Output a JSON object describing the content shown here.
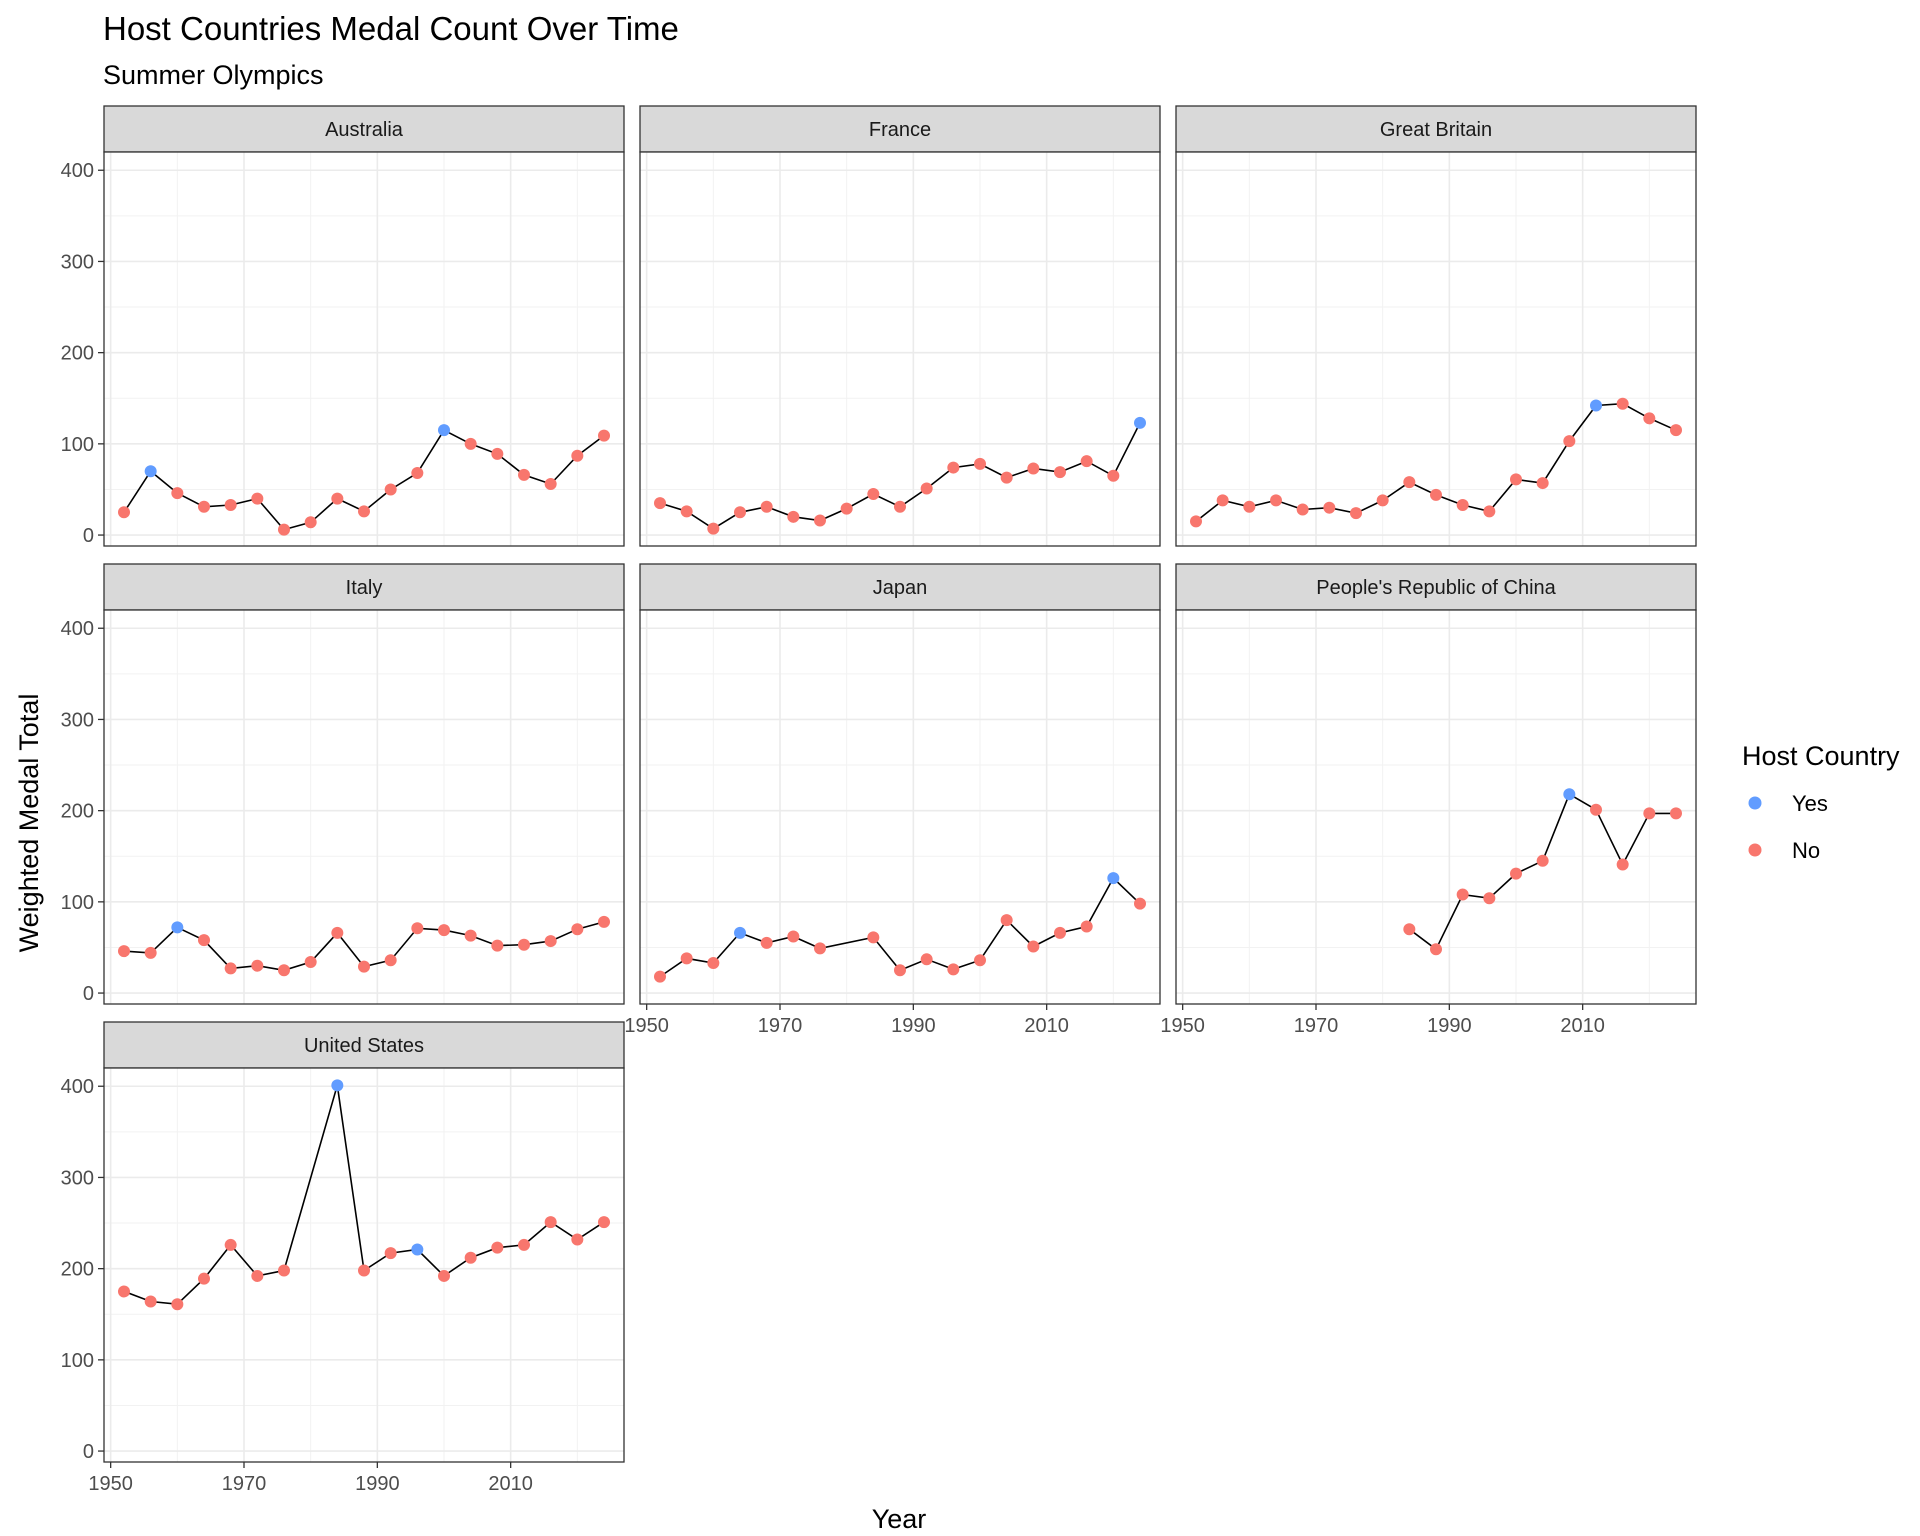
{
  "chart_data": {
    "type": "line",
    "title": "Host Countries Medal Count Over Time",
    "subtitle": "Summer Olympics",
    "xlabel": "Year",
    "ylabel": "Weighted Medal Total",
    "xlim": [
      1949,
      2027
    ],
    "ylim": [
      -12,
      420
    ],
    "x_ticks": [
      1950,
      1970,
      1990,
      2010
    ],
    "y_ticks": [
      0,
      100,
      200,
      300,
      400
    ],
    "grid": true,
    "legend": {
      "title": "Host Country",
      "position": "right",
      "entries": [
        {
          "label": "Yes",
          "color": "#619CFF"
        },
        {
          "label": "No",
          "color": "#F8766D"
        }
      ]
    },
    "line_color": "#000000",
    "facets": [
      {
        "name": "Australia",
        "x": [
          1952,
          1956,
          1960,
          1964,
          1968,
          1972,
          1976,
          1980,
          1984,
          1988,
          1992,
          1996,
          2000,
          2004,
          2008,
          2012,
          2016,
          2020,
          2024
        ],
        "y": [
          25,
          70,
          46,
          31,
          33,
          40,
          6,
          14,
          40,
          26,
          50,
          68,
          115,
          100,
          89,
          66,
          56,
          87,
          109
        ],
        "host": [
          0,
          1,
          0,
          0,
          0,
          0,
          0,
          0,
          0,
          0,
          0,
          0,
          1,
          0,
          0,
          0,
          0,
          0,
          0
        ]
      },
      {
        "name": "France",
        "x": [
          1952,
          1956,
          1960,
          1964,
          1968,
          1972,
          1976,
          1980,
          1984,
          1988,
          1992,
          1996,
          2000,
          2004,
          2008,
          2012,
          2016,
          2020,
          2024
        ],
        "y": [
          35,
          26,
          7,
          25,
          31,
          20,
          16,
          29,
          45,
          31,
          51,
          74,
          78,
          63,
          73,
          69,
          81,
          65,
          123
        ],
        "host": [
          0,
          0,
          0,
          0,
          0,
          0,
          0,
          0,
          0,
          0,
          0,
          0,
          0,
          0,
          0,
          0,
          0,
          0,
          1
        ]
      },
      {
        "name": "Great Britain",
        "x": [
          1952,
          1956,
          1960,
          1964,
          1968,
          1972,
          1976,
          1980,
          1984,
          1988,
          1992,
          1996,
          2000,
          2004,
          2008,
          2012,
          2016,
          2020,
          2024
        ],
        "y": [
          15,
          38,
          31,
          38,
          28,
          30,
          24,
          38,
          58,
          44,
          33,
          26,
          61,
          57,
          103,
          142,
          144,
          128,
          115
        ],
        "host": [
          0,
          0,
          0,
          0,
          0,
          0,
          0,
          0,
          0,
          0,
          0,
          0,
          0,
          0,
          0,
          1,
          0,
          0,
          0
        ]
      },
      {
        "name": "Italy",
        "x": [
          1952,
          1956,
          1960,
          1964,
          1968,
          1972,
          1976,
          1980,
          1984,
          1988,
          1992,
          1996,
          2000,
          2004,
          2008,
          2012,
          2016,
          2020,
          2024
        ],
        "y": [
          46,
          44,
          72,
          58,
          27,
          30,
          25,
          34,
          66,
          29,
          36,
          71,
          69,
          63,
          52,
          53,
          57,
          70,
          78
        ],
        "host": [
          0,
          0,
          1,
          0,
          0,
          0,
          0,
          0,
          0,
          0,
          0,
          0,
          0,
          0,
          0,
          0,
          0,
          0,
          0
        ]
      },
      {
        "name": "Japan",
        "x": [
          1952,
          1956,
          1960,
          1964,
          1968,
          1972,
          1976,
          1984,
          1988,
          1992,
          1996,
          2000,
          2004,
          2008,
          2012,
          2016,
          2020,
          2024
        ],
        "y": [
          18,
          38,
          33,
          66,
          55,
          62,
          49,
          61,
          25,
          37,
          26,
          36,
          80,
          51,
          66,
          73,
          126,
          98
        ],
        "host": [
          0,
          0,
          0,
          1,
          0,
          0,
          0,
          0,
          0,
          0,
          0,
          0,
          0,
          0,
          0,
          0,
          1,
          0
        ]
      },
      {
        "name": "People's Republic of China",
        "x": [
          1984,
          1988,
          1992,
          1996,
          2000,
          2004,
          2008,
          2012,
          2016,
          2020,
          2024
        ],
        "y": [
          70,
          48,
          108,
          104,
          131,
          145,
          218,
          201,
          141,
          197,
          197
        ],
        "host": [
          0,
          0,
          0,
          0,
          0,
          0,
          1,
          0,
          0,
          0,
          0
        ]
      },
      {
        "name": "United States",
        "x": [
          1952,
          1956,
          1960,
          1964,
          1968,
          1972,
          1976,
          1984,
          1988,
          1992,
          1996,
          2000,
          2004,
          2008,
          2012,
          2016,
          2020,
          2024
        ],
        "y": [
          175,
          164,
          161,
          189,
          226,
          192,
          198,
          401,
          198,
          217,
          221,
          192,
          212,
          223,
          226,
          251,
          232,
          251
        ],
        "host": [
          0,
          0,
          0,
          0,
          0,
          0,
          0,
          1,
          0,
          0,
          1,
          0,
          0,
          0,
          0,
          0,
          0,
          0
        ]
      }
    ]
  }
}
